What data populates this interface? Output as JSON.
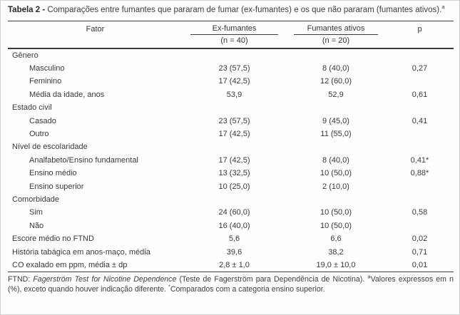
{
  "title": {
    "bold": "Tabela 2 -",
    "text": " Comparações entre fumantes que pararam de fumar (ex-fumantes) e os que não pararam (fumantes ativos).",
    "sup": "a"
  },
  "table": {
    "header": {
      "fator": "Fator",
      "ex_fumantes": "Ex-fumantes",
      "ex_fumantes_n": "(n = 40)",
      "fumantes_ativos": "Fumantes ativos",
      "fumantes_ativos_n": "(n = 20)",
      "p": "p"
    },
    "rows": [
      {
        "type": "section",
        "label": "Gênero",
        "ex": "",
        "ativos": "",
        "p": ""
      },
      {
        "type": "item",
        "label": "Masculino",
        "ex": "23 (57,5)",
        "ativos": "8 (40,0)",
        "p": "0,27"
      },
      {
        "type": "item",
        "label": "Feminino",
        "ex": "17 (42,5)",
        "ativos": "12 (60,0)",
        "p": ""
      },
      {
        "type": "item",
        "label": "Média da idade, anos",
        "ex": "53,9",
        "ativos": "52,9",
        "p": "0,61"
      },
      {
        "type": "section",
        "label": "Estado civil",
        "ex": "",
        "ativos": "",
        "p": ""
      },
      {
        "type": "item",
        "label": "Casado",
        "ex": "23 (57,5)",
        "ativos": "9 (45,0)",
        "p": "0,41"
      },
      {
        "type": "item",
        "label": "Outro",
        "ex": "17 (42,5)",
        "ativos": "11 (55,0)",
        "p": ""
      },
      {
        "type": "section",
        "label": "Nível de escolaridade",
        "ex": "",
        "ativos": "",
        "p": ""
      },
      {
        "type": "item",
        "label": "Analfabeto/Ensino fundamental",
        "ex": "17 (42,5)",
        "ativos": "8 (40,0)",
        "p": "0,41*"
      },
      {
        "type": "item",
        "label": "Ensino médio",
        "ex": "13 (32,5)",
        "ativos": "10 (50,0)",
        "p": "0,88*"
      },
      {
        "type": "item",
        "label": "Ensino superior",
        "ex": "10 (25,0)",
        "ativos": "2 (10,0)",
        "p": ""
      },
      {
        "type": "section",
        "label": "Comorbidade",
        "ex": "",
        "ativos": "",
        "p": ""
      },
      {
        "type": "item",
        "label": "Sim",
        "ex": "24 (60,0)",
        "ativos": "10 (50,0)",
        "p": "0,58"
      },
      {
        "type": "item",
        "label": "Não",
        "ex": "16 (40,0)",
        "ativos": "10 (50,0)",
        "p": ""
      },
      {
        "type": "flat",
        "label": "Escore médio no FTND",
        "ex": "5,6",
        "ativos": "6,6",
        "p": "0,02"
      },
      {
        "type": "flat",
        "label": "História tabágica em anos-maço, média",
        "ex": "39,6",
        "ativos": "38,2",
        "p": "0,71"
      },
      {
        "type": "flat",
        "label": "CO exalado em ppm, média ± dp",
        "ex": "2,8 ± 1,0",
        "ativos": "19,0 ± 10,0",
        "p": "0,01"
      }
    ]
  },
  "footnote": {
    "prefix": "FTND: ",
    "italic": "Fagerström Test for Nicotine Dependence",
    "mid": " (Teste de Fagerström para Dependência de Nicotina). ",
    "sup1": "a",
    "note1": "Valores expressos em n (%), exceto quando houver indicação diferente. ",
    "sup2": "*",
    "note2": "Comparados com a categoria ensino superior."
  }
}
